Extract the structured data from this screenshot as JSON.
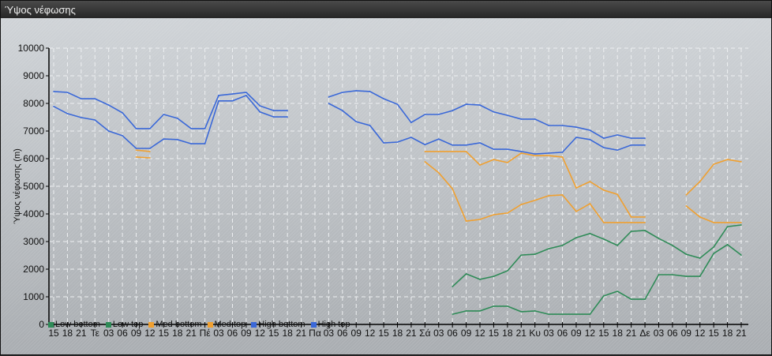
{
  "window": {
    "title": "Ύψος νέφωσης"
  },
  "chart_data": {
    "type": "line",
    "title": "",
    "xlabel": "",
    "ylabel": "Ύψος νέφωσης (m)",
    "ylim": [
      0,
      10000
    ],
    "yticks": [
      0,
      1000,
      2000,
      3000,
      4000,
      5000,
      6000,
      7000,
      8000,
      9000,
      10000
    ],
    "grid": true,
    "legend_position": "bottom-left",
    "categories": [
      "15",
      "18",
      "21",
      "Τε",
      "03",
      "06",
      "09",
      "12",
      "15",
      "18",
      "21",
      "Πέ",
      "03",
      "06",
      "09",
      "12",
      "15",
      "18",
      "21",
      "Πα",
      "03",
      "06",
      "09",
      "12",
      "15",
      "18",
      "21",
      "Σά",
      "03",
      "06",
      "09",
      "12",
      "15",
      "18",
      "21",
      "Κυ",
      "03",
      "06",
      "09",
      "12",
      "15",
      "18",
      "21",
      "Δε",
      "03",
      "06",
      "09",
      "12",
      "15",
      "18",
      "21"
    ],
    "series": [
      {
        "name": "Low bottom",
        "color": "#2e8b57",
        "values": [
          null,
          null,
          null,
          null,
          null,
          null,
          null,
          null,
          null,
          null,
          null,
          null,
          null,
          null,
          null,
          null,
          null,
          null,
          null,
          null,
          null,
          null,
          null,
          null,
          null,
          null,
          null,
          null,
          null,
          370,
          490,
          490,
          660,
          660,
          460,
          490,
          370,
          370,
          370,
          370,
          1030,
          1200,
          910,
          910,
          1800,
          1800,
          1740,
          1740,
          2570,
          2890,
          2510
        ]
      },
      {
        "name": "Low top",
        "color": "#2e8b57",
        "values": [
          null,
          null,
          null,
          null,
          null,
          null,
          null,
          null,
          null,
          null,
          null,
          null,
          null,
          null,
          null,
          null,
          null,
          null,
          null,
          null,
          null,
          null,
          null,
          null,
          null,
          null,
          null,
          null,
          null,
          1370,
          1830,
          1630,
          1740,
          1940,
          2510,
          2540,
          2740,
          2860,
          3140,
          3290,
          3090,
          2860,
          3370,
          3400,
          3110,
          2860,
          2540,
          2400,
          2800,
          3540,
          3600
        ]
      },
      {
        "name": "Med bottom",
        "color": "#f0a030",
        "values": [
          null,
          null,
          null,
          null,
          null,
          null,
          6060,
          6030,
          null,
          null,
          null,
          null,
          null,
          null,
          null,
          null,
          null,
          null,
          null,
          null,
          null,
          null,
          null,
          null,
          null,
          null,
          null,
          5890,
          5490,
          4910,
          3740,
          3800,
          3970,
          4030,
          4340,
          4490,
          4660,
          4690,
          4090,
          4370,
          3690,
          3690,
          3690,
          3690,
          null,
          null,
          4290,
          3890,
          3690,
          3690,
          3690
        ]
      },
      {
        "name": "Med top",
        "color": "#f0a030",
        "values": [
          null,
          null,
          null,
          null,
          null,
          null,
          6310,
          6260,
          null,
          null,
          null,
          null,
          null,
          null,
          null,
          null,
          null,
          null,
          null,
          null,
          null,
          null,
          null,
          null,
          null,
          null,
          null,
          6260,
          6260,
          6260,
          6260,
          5770,
          5970,
          5860,
          6200,
          6110,
          6110,
          6060,
          4940,
          5170,
          4860,
          4710,
          3890,
          3890,
          null,
          null,
          4690,
          5170,
          5800,
          5970,
          5890
        ]
      },
      {
        "name": "High bottom",
        "color": "#3a68d8",
        "values": [
          7890,
          7630,
          7490,
          7400,
          7000,
          6830,
          6370,
          6370,
          6710,
          6690,
          6540,
          6540,
          8090,
          8090,
          8290,
          7690,
          7510,
          7510,
          null,
          null,
          8000,
          7740,
          7340,
          7200,
          6570,
          6600,
          6770,
          6510,
          6710,
          6490,
          6490,
          6570,
          6340,
          6340,
          6260,
          6170,
          6200,
          6230,
          6770,
          6690,
          6400,
          6310,
          6490,
          6490,
          null,
          null,
          null,
          null,
          null,
          null,
          null
        ]
      },
      {
        "name": "High top",
        "color": "#3a68d8",
        "values": [
          8430,
          8400,
          8170,
          8170,
          7940,
          7660,
          7090,
          7090,
          7600,
          7460,
          7090,
          7090,
          8290,
          8340,
          8400,
          7910,
          7740,
          7740,
          null,
          null,
          8230,
          8400,
          8460,
          8430,
          8170,
          7970,
          7310,
          7600,
          7600,
          7740,
          7970,
          7940,
          7690,
          7570,
          7430,
          7430,
          7200,
          7200,
          7140,
          7030,
          6740,
          6860,
          6740,
          6740,
          null,
          null,
          null,
          null,
          null,
          null,
          null
        ]
      }
    ]
  }
}
